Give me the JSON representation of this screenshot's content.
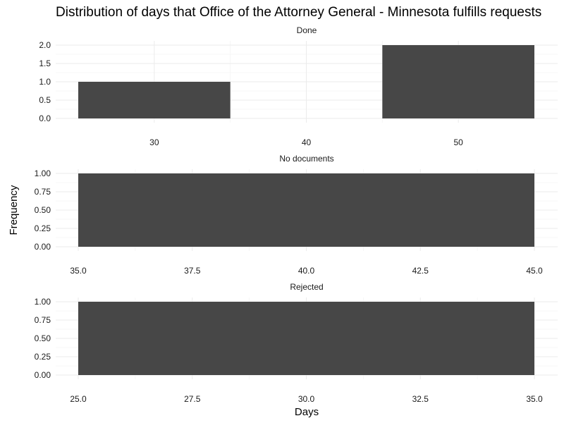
{
  "chart_data": {
    "type": "bar",
    "title": "Distribution of days that Office of the Attorney General - Minnesota fulfills requests",
    "xlabel": "Days",
    "ylabel": "Frequency",
    "grid": true,
    "legend": "none",
    "bar_color": "#474747",
    "facets": [
      {
        "name": "Done",
        "xlim": [
          25,
          55
        ],
        "ylim": [
          0,
          2
        ],
        "x_ticks": [
          30,
          40,
          50
        ],
        "x_tick_labels": [
          "30",
          "40",
          "50"
        ],
        "y_ticks": [
          0,
          0.5,
          1,
          1.5,
          2
        ],
        "y_tick_labels": [
          "0.0",
          "0.5",
          "1.0",
          "1.5",
          "2.0"
        ],
        "bars": [
          {
            "x0": 25,
            "x1": 35,
            "value": 1
          },
          {
            "x0": 45,
            "x1": 55,
            "value": 2
          }
        ]
      },
      {
        "name": "No documents",
        "xlim": [
          35,
          45
        ],
        "ylim": [
          0,
          1
        ],
        "x_ticks": [
          35,
          37.5,
          40,
          42.5,
          45
        ],
        "x_tick_labels": [
          "35.0",
          "37.5",
          "40.0",
          "42.5",
          "45.0"
        ],
        "y_ticks": [
          0,
          0.25,
          0.5,
          0.75,
          1
        ],
        "y_tick_labels": [
          "0.00",
          "0.25",
          "0.50",
          "0.75",
          "1.00"
        ],
        "bars": [
          {
            "x0": 35,
            "x1": 45,
            "value": 1
          }
        ]
      },
      {
        "name": "Rejected",
        "xlim": [
          25,
          35
        ],
        "ylim": [
          0,
          1
        ],
        "x_ticks": [
          25,
          27.5,
          30,
          32.5,
          35
        ],
        "x_tick_labels": [
          "25.0",
          "27.5",
          "30.0",
          "32.5",
          "35.0"
        ],
        "y_ticks": [
          0,
          0.25,
          0.5,
          0.75,
          1
        ],
        "y_tick_labels": [
          "0.00",
          "0.25",
          "0.50",
          "0.75",
          "1.00"
        ],
        "bars": [
          {
            "x0": 25,
            "x1": 35,
            "value": 1
          }
        ]
      }
    ]
  }
}
